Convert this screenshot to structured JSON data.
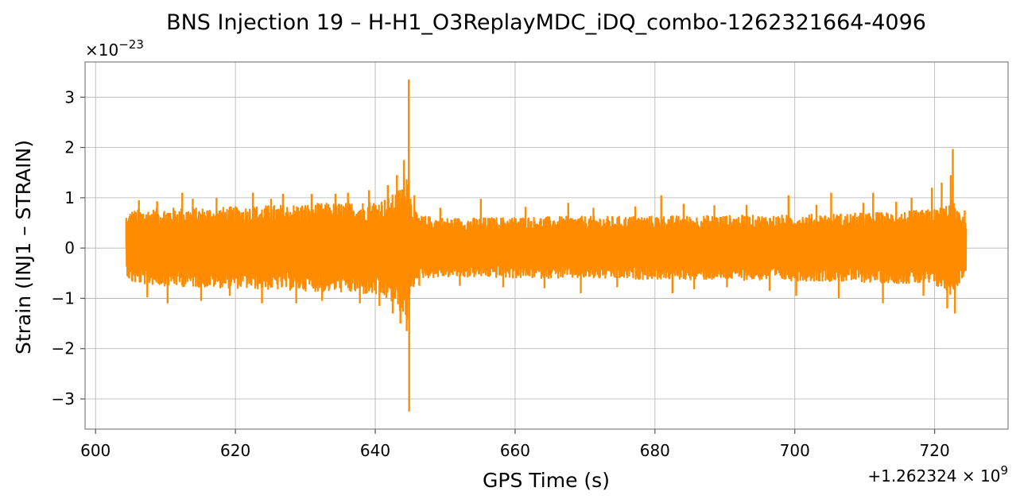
{
  "chart_data": {
    "type": "line",
    "title": "BNS Injection 19 – H-H1_O3ReplayMDC_iDQ_combo-1262321664-4096",
    "xlabel": "GPS Time (s)",
    "ylabel": "Strain (INJ1 – STRAIN)",
    "x_offset_label": "+1.262324 × 10",
    "x_offset_exponent": "9",
    "y_scale_label": "×10",
    "y_scale_exponent": "−23",
    "xlim": [
      598.5,
      730.5
    ],
    "ylim": [
      -3.6,
      3.7
    ],
    "xticks": [
      600,
      620,
      640,
      660,
      680,
      700,
      720
    ],
    "xtick_labels": [
      "600",
      "620",
      "640",
      "660",
      "680",
      "700",
      "720"
    ],
    "yticks": [
      -3,
      -2,
      -1,
      0,
      1,
      2,
      3
    ],
    "ytick_labels": [
      "−3",
      "−2",
      "−1",
      "0",
      "1",
      "2",
      "3"
    ],
    "grid": true,
    "series": [
      {
        "color": "#ff8c00",
        "x_range": [
          604.4,
          724.5
        ],
        "envelope": {
          "x": [
            604.4,
            605,
            610,
            615,
            620,
            625,
            630,
            635,
            638,
            640,
            642,
            643.5,
            644.5,
            645.2,
            646,
            650,
            655,
            660,
            665,
            670,
            675,
            680,
            685,
            690,
            695,
            700,
            705,
            710,
            715,
            718,
            720,
            721.5,
            722.5,
            723.5,
            724.5
          ],
          "upper": [
            0.55,
            0.75,
            0.8,
            0.8,
            0.82,
            0.85,
            0.88,
            0.9,
            0.92,
            0.95,
            1.0,
            1.2,
            1.6,
            0.95,
            0.65,
            0.6,
            0.6,
            0.62,
            0.62,
            0.63,
            0.63,
            0.64,
            0.64,
            0.65,
            0.65,
            0.66,
            0.68,
            0.7,
            0.72,
            0.75,
            0.78,
            0.85,
            0.95,
            0.7,
            0.55
          ],
          "lower": [
            -0.5,
            -0.7,
            -0.75,
            -0.78,
            -0.8,
            -0.83,
            -0.85,
            -0.88,
            -0.92,
            -0.95,
            -1.05,
            -1.25,
            -1.5,
            -0.9,
            -0.6,
            -0.58,
            -0.58,
            -0.6,
            -0.6,
            -0.61,
            -0.62,
            -0.62,
            -0.63,
            -0.63,
            -0.64,
            -0.65,
            -0.66,
            -0.68,
            -0.7,
            -0.72,
            -0.76,
            -0.85,
            -0.95,
            -0.7,
            -0.5
          ]
        },
        "spikes": [
          {
            "x": 604.4,
            "y": 0.6
          },
          {
            "x": 606.2,
            "y": 0.95
          },
          {
            "x": 607.4,
            "y": -0.98
          },
          {
            "x": 608.8,
            "y": 0.93
          },
          {
            "x": 610.3,
            "y": -1.1
          },
          {
            "x": 612.4,
            "y": 1.1
          },
          {
            "x": 613.9,
            "y": 0.98
          },
          {
            "x": 615.1,
            "y": -1.05
          },
          {
            "x": 617.3,
            "y": 1.0
          },
          {
            "x": 619.2,
            "y": -0.95
          },
          {
            "x": 622.5,
            "y": 1.1
          },
          {
            "x": 623.8,
            "y": -1.1
          },
          {
            "x": 625.1,
            "y": 0.98
          },
          {
            "x": 626.8,
            "y": 1.08
          },
          {
            "x": 628.7,
            "y": -1.1
          },
          {
            "x": 630.9,
            "y": 1.08
          },
          {
            "x": 632.4,
            "y": -1.05
          },
          {
            "x": 634.3,
            "y": 1.08
          },
          {
            "x": 636.1,
            "y": 1.1
          },
          {
            "x": 637.8,
            "y": -1.1
          },
          {
            "x": 639.1,
            "y": 1.15
          },
          {
            "x": 640.6,
            "y": -1.15
          },
          {
            "x": 641.8,
            "y": 1.25
          },
          {
            "x": 642.5,
            "y": -1.3
          },
          {
            "x": 643.1,
            "y": 1.45
          },
          {
            "x": 643.6,
            "y": -1.5
          },
          {
            "x": 644.1,
            "y": 1.75
          },
          {
            "x": 644.5,
            "y": -1.65
          },
          {
            "x": 644.8,
            "y": 3.35
          },
          {
            "x": 644.85,
            "y": -3.25
          },
          {
            "x": 645.6,
            "y": 1.05
          },
          {
            "x": 646.3,
            "y": -0.75
          },
          {
            "x": 649.3,
            "y": 0.8
          },
          {
            "x": 652.1,
            "y": -0.75
          },
          {
            "x": 655.1,
            "y": 0.98
          },
          {
            "x": 658.3,
            "y": -0.78
          },
          {
            "x": 661.5,
            "y": 0.82
          },
          {
            "x": 664.2,
            "y": -0.8
          },
          {
            "x": 667.6,
            "y": 0.9
          },
          {
            "x": 669.4,
            "y": -0.9
          },
          {
            "x": 671.2,
            "y": 0.8
          },
          {
            "x": 674.6,
            "y": -0.78
          },
          {
            "x": 677.2,
            "y": 0.83
          },
          {
            "x": 680.9,
            "y": 1.05
          },
          {
            "x": 682.5,
            "y": -0.9
          },
          {
            "x": 684.1,
            "y": 0.88
          },
          {
            "x": 685.6,
            "y": -0.82
          },
          {
            "x": 688.5,
            "y": 0.85
          },
          {
            "x": 690.3,
            "y": -0.78
          },
          {
            "x": 693.1,
            "y": 0.86
          },
          {
            "x": 696.4,
            "y": -0.85
          },
          {
            "x": 699.1,
            "y": 1.05
          },
          {
            "x": 700.2,
            "y": -0.95
          },
          {
            "x": 703.1,
            "y": 0.86
          },
          {
            "x": 705.2,
            "y": 1.1
          },
          {
            "x": 706.3,
            "y": -1.0
          },
          {
            "x": 709.8,
            "y": 0.9
          },
          {
            "x": 711.2,
            "y": 1.1
          },
          {
            "x": 712.6,
            "y": -1.1
          },
          {
            "x": 714.5,
            "y": 0.92
          },
          {
            "x": 716.7,
            "y": 1.0
          },
          {
            "x": 718.4,
            "y": -0.95
          },
          {
            "x": 719.6,
            "y": 1.2
          },
          {
            "x": 721.0,
            "y": 1.3
          },
          {
            "x": 721.8,
            "y": -1.2
          },
          {
            "x": 722.3,
            "y": 1.45
          },
          {
            "x": 722.6,
            "y": 1.97
          },
          {
            "x": 722.9,
            "y": -1.3
          },
          {
            "x": 724.3,
            "y": 0.75
          }
        ]
      }
    ]
  }
}
